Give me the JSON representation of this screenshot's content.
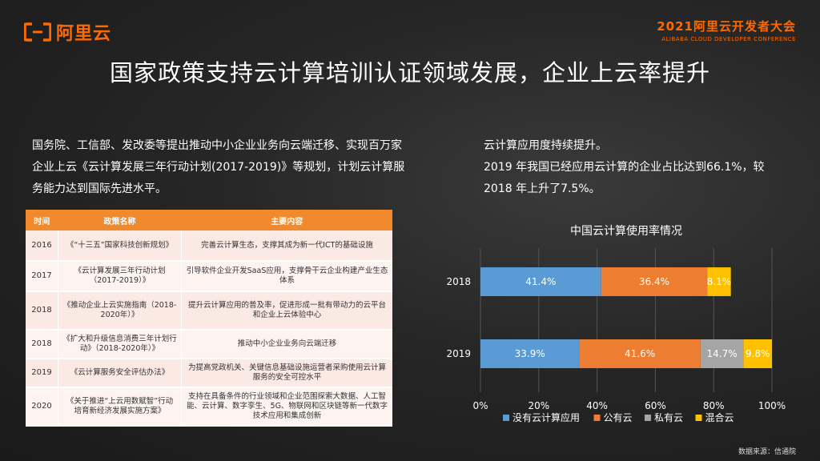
{
  "brand": {
    "logo_text": "阿里云",
    "accent": "#ff6a00"
  },
  "conference": {
    "title": "2021阿里云开发者大会",
    "subtitle": "ALIBABA CLOUD DEVELOPER CONFERENCE"
  },
  "title": "国家政策支持云计算培训认证领域发展，企业上云率提升",
  "left_text": "国务院、工信部、发改委等提出推动中小企业业务向云端迁移、实现百万家企业上云《云计算发展三年行动计划(2017-2019)》等规划，计划云计算服务能力达到国际先进水平。",
  "right_text": [
    "云计算应用度持续提升。",
    "2019 年我国已经应用云计算的企业占比达到66.1%，较",
    "2018 年上升了7.5%。"
  ],
  "table": {
    "headers": [
      "时间",
      "政策名称",
      "主要内容"
    ],
    "rows": [
      {
        "year": "2016",
        "name": "《“十三五”国家科技创新规划》",
        "content": "完善云计算生态，支撑其成为新一代ICT的基础设施"
      },
      {
        "year": "2017",
        "name": "《云计算发展三年行动计划（2017-2019）》",
        "content": "引导软件企业开发SaaS应用，支撑骨干云企业构建产业生态体系"
      },
      {
        "year": "2018",
        "name": "《推动企业上云实施指南（2018-2020年）》",
        "content": "提升云计算应用的普及率，促进形成一批有带动力的云平台和企业上云体验中心"
      },
      {
        "year": "2018",
        "name": "《扩大和升级信息消费三年计划行动》（2018-2020年）》",
        "content": "推动中小企业业务向云端迁移"
      },
      {
        "year": "2019",
        "name": "《云计算服务安全评估办法》",
        "content": "为提高党政机关、关键信息基础设施运营者采购使用云计算服务的安全可控水平"
      },
      {
        "year": "2020",
        "name": "《关于推进“上云用数赋智”行动 培育新经济发展实施方案》",
        "content": "支持在具备条件的行业领域和企业范围探索大数据、人工智能、云计算、数字孪生、5G、物联网和区块链等新一代数字技术应用和集成创新"
      }
    ]
  },
  "chart_data": {
    "type": "bar",
    "orientation": "horizontal",
    "stacked": true,
    "title": "中国云计算使用率情况",
    "categories": [
      "2018",
      "2019"
    ],
    "series": [
      {
        "name": "没有云计算应用",
        "color": "#5b9bd5",
        "values": [
          41.4,
          33.9
        ],
        "labels": [
          "41.4%",
          "33.9%"
        ]
      },
      {
        "name": "公有云",
        "color": "#ed7d31",
        "values": [
          36.4,
          41.6
        ],
        "labels": [
          "36.4%",
          "41.6%"
        ]
      },
      {
        "name": "私有云",
        "color": "#a5a5a5",
        "values": [
          null,
          14.7
        ],
        "labels": [
          "",
          "14.7%"
        ]
      },
      {
        "name": "混合云",
        "color": "#ffc000",
        "values": [
          8.1,
          9.8
        ],
        "labels": [
          "8.1%",
          "9.8%"
        ]
      }
    ],
    "xlim": [
      0,
      100
    ],
    "xticks": [
      "0%",
      "20%",
      "40%",
      "60%",
      "80%",
      "100%"
    ],
    "legend": "bottom",
    "grid": true
  },
  "source": "数据来源：信通院"
}
